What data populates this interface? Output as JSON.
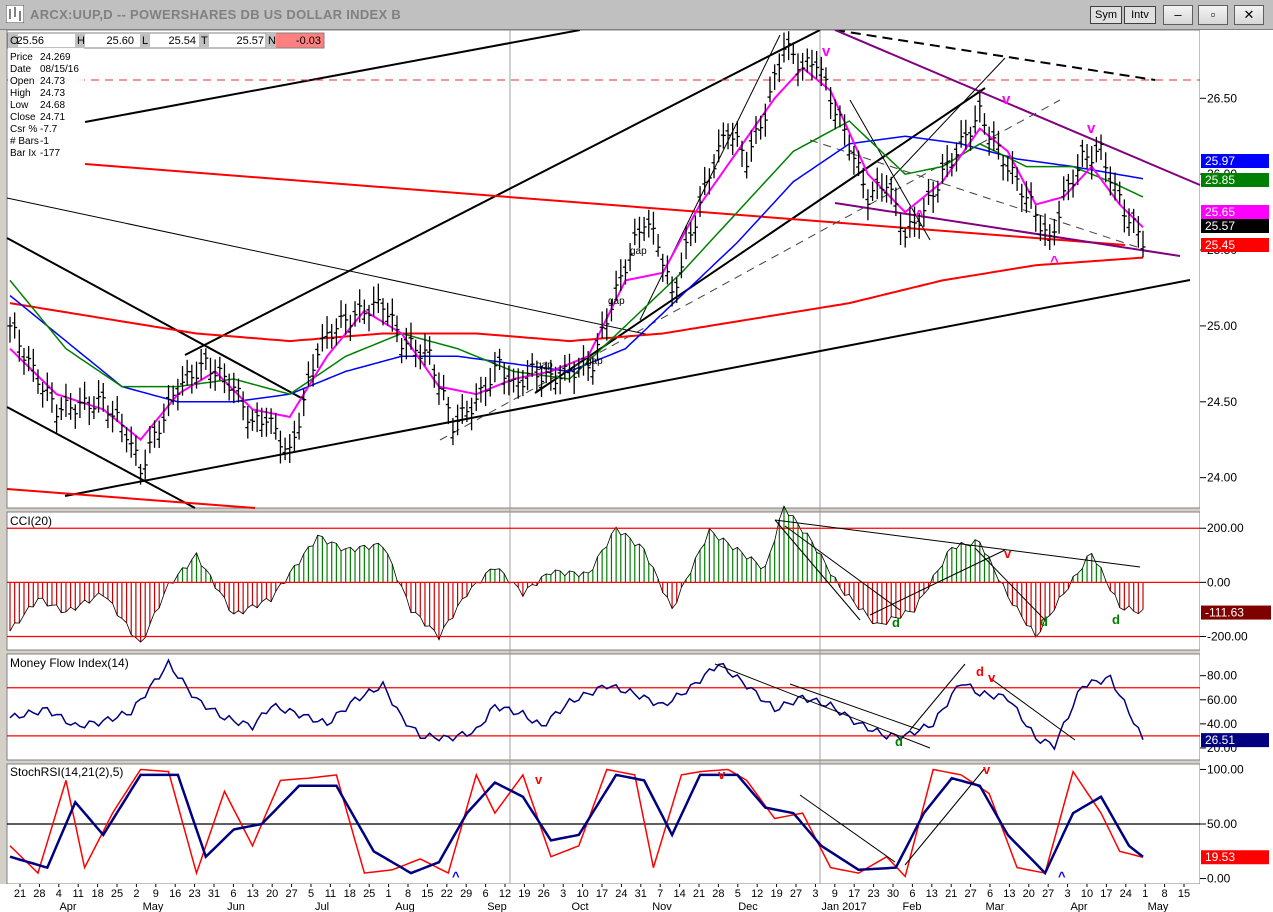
{
  "window": {
    "title": "ARCX:UUP,D -- POWERSHARES DB US DOLLAR INDEX B",
    "sym_label": "Sym",
    "intv_label": "Intv",
    "minimize_glyph": "–",
    "restore_glyph": "▫",
    "close_glyph": "✕"
  },
  "colors": {
    "bg": "#ffffff",
    "up_bar": "#000000",
    "ema_magenta": "#ff00ff",
    "ema_green": "#008000",
    "ema_blue": "#0000ff",
    "ema_red": "#ff0000",
    "channel_purple": "#800080",
    "cci_pos": "#008000",
    "cci_neg": "#cc0000",
    "mfi_line": "#000080",
    "stoch_red": "#ff0000",
    "stoch_blue": "#000080"
  },
  "ohlc_header": {
    "o_label": "O",
    "o_value": "25.56",
    "h_label": "H",
    "h_value": "25.60",
    "l_label": "L",
    "l_value": "25.54",
    "c_label": "T",
    "c_value": "25.57",
    "n_label": "N",
    "n_value": "-0.03"
  },
  "data_window": {
    "rows": [
      {
        "label": "Price",
        "value": "24.269"
      },
      {
        "label": "Date",
        "value": "08/15/16"
      },
      {
        "label": "Open",
        "value": "24.73"
      },
      {
        "label": "High",
        "value": "24.73"
      },
      {
        "label": "Low",
        "value": "24.68"
      },
      {
        "label": "Close",
        "value": "24.71"
      },
      {
        "label": "Csr %",
        "value": "-7.7"
      },
      {
        "label": "# Bars",
        "value": "-1"
      },
      {
        "label": "Bar Ix",
        "value": "-177"
      }
    ]
  },
  "chart_data": [
    {
      "type": "ohlc",
      "panel": "price",
      "title": "ARCX:UUP,D -- POWERSHARES DB US DOLLAR INDEX B",
      "ylim": [
        23.8,
        26.95
      ],
      "y_ticks": [
        "26.50",
        "26.00",
        "25.50",
        "25.00",
        "24.50",
        "24.00"
      ],
      "price_path": [
        [
          0,
          25.0
        ],
        [
          5,
          24.7
        ],
        [
          10,
          24.45
        ],
        [
          20,
          24.5
        ],
        [
          25,
          24.3
        ],
        [
          28,
          24.05
        ],
        [
          30,
          24.2
        ],
        [
          36,
          24.6
        ],
        [
          42,
          24.75
        ],
        [
          48,
          24.6
        ],
        [
          52,
          24.35
        ],
        [
          55,
          24.4
        ],
        [
          60,
          24.15
        ],
        [
          66,
          24.85
        ],
        [
          70,
          25.0
        ],
        [
          76,
          25.1
        ],
        [
          80,
          25.15
        ],
        [
          84,
          24.9
        ],
        [
          90,
          24.8
        ],
        [
          95,
          24.35
        ],
        [
          100,
          24.5
        ],
        [
          105,
          24.75
        ],
        [
          108,
          24.6
        ],
        [
          112,
          24.7
        ],
        [
          116,
          24.65
        ],
        [
          120,
          24.7
        ],
        [
          125,
          24.75
        ],
        [
          128,
          25.05
        ],
        [
          132,
          25.4
        ],
        [
          136,
          25.7
        ],
        [
          139,
          25.55
        ],
        [
          142,
          25.2
        ],
        [
          146,
          25.6
        ],
        [
          150,
          26.0
        ],
        [
          154,
          26.3
        ],
        [
          158,
          26.1
        ],
        [
          162,
          26.4
        ],
        [
          166,
          26.85
        ],
        [
          170,
          26.7
        ],
        [
          173,
          26.75
        ],
        [
          176,
          26.5
        ],
        [
          180,
          26.2
        ],
        [
          184,
          25.85
        ],
        [
          188,
          25.95
        ],
        [
          192,
          25.6
        ],
        [
          196,
          25.75
        ],
        [
          200,
          26.0
        ],
        [
          204,
          26.2
        ],
        [
          208,
          26.4
        ],
        [
          212,
          26.15
        ],
        [
          215,
          26.0
        ],
        [
          219,
          25.8
        ],
        [
          223,
          25.55
        ],
        [
          226,
          25.85
        ],
        [
          230,
          26.1
        ],
        [
          234,
          26.15
        ],
        [
          237,
          25.9
        ],
        [
          240,
          25.7
        ],
        [
          243,
          25.57
        ]
      ],
      "ema_magenta": [
        [
          0,
          24.85
        ],
        [
          10,
          24.55
        ],
        [
          20,
          24.45
        ],
        [
          28,
          24.25
        ],
        [
          36,
          24.55
        ],
        [
          44,
          24.7
        ],
        [
          52,
          24.45
        ],
        [
          60,
          24.4
        ],
        [
          68,
          24.8
        ],
        [
          76,
          25.1
        ],
        [
          84,
          24.95
        ],
        [
          92,
          24.6
        ],
        [
          100,
          24.55
        ],
        [
          108,
          24.65
        ],
        [
          116,
          24.7
        ],
        [
          124,
          24.8
        ],
        [
          132,
          25.3
        ],
        [
          140,
          25.35
        ],
        [
          148,
          25.8
        ],
        [
          156,
          26.15
        ],
        [
          164,
          26.5
        ],
        [
          170,
          26.7
        ],
        [
          176,
          26.55
        ],
        [
          184,
          26.0
        ],
        [
          192,
          25.75
        ],
        [
          200,
          25.95
        ],
        [
          208,
          26.3
        ],
        [
          214,
          26.15
        ],
        [
          220,
          25.8
        ],
        [
          226,
          25.85
        ],
        [
          232,
          26.05
        ],
        [
          238,
          25.8
        ],
        [
          243,
          25.65
        ]
      ],
      "ema_green": [
        [
          0,
          25.3
        ],
        [
          12,
          24.85
        ],
        [
          24,
          24.6
        ],
        [
          36,
          24.6
        ],
        [
          48,
          24.65
        ],
        [
          60,
          24.55
        ],
        [
          72,
          24.8
        ],
        [
          84,
          24.95
        ],
        [
          96,
          24.85
        ],
        [
          108,
          24.7
        ],
        [
          120,
          24.65
        ],
        [
          132,
          25.0
        ],
        [
          144,
          25.35
        ],
        [
          156,
          25.75
        ],
        [
          168,
          26.15
        ],
        [
          180,
          26.35
        ],
        [
          192,
          26.0
        ],
        [
          200,
          26.05
        ],
        [
          208,
          26.2
        ],
        [
          218,
          26.05
        ],
        [
          228,
          26.05
        ],
        [
          236,
          25.95
        ],
        [
          243,
          25.85
        ]
      ],
      "ema_blue": [
        [
          0,
          25.2
        ],
        [
          12,
          24.9
        ],
        [
          24,
          24.6
        ],
        [
          36,
          24.5
        ],
        [
          48,
          24.5
        ],
        [
          60,
          24.55
        ],
        [
          72,
          24.7
        ],
        [
          84,
          24.8
        ],
        [
          96,
          24.8
        ],
        [
          108,
          24.75
        ],
        [
          120,
          24.7
        ],
        [
          132,
          24.85
        ],
        [
          144,
          25.2
        ],
        [
          156,
          25.55
        ],
        [
          168,
          25.95
        ],
        [
          180,
          26.2
        ],
        [
          192,
          26.25
        ],
        [
          204,
          26.2
        ],
        [
          216,
          26.1
        ],
        [
          228,
          26.05
        ],
        [
          243,
          25.97
        ]
      ],
      "ema_red": [
        [
          0,
          25.15
        ],
        [
          20,
          25.05
        ],
        [
          40,
          24.95
        ],
        [
          60,
          24.9
        ],
        [
          80,
          24.95
        ],
        [
          100,
          24.95
        ],
        [
          120,
          24.9
        ],
        [
          140,
          24.95
        ],
        [
          160,
          25.05
        ],
        [
          180,
          25.15
        ],
        [
          200,
          25.3
        ],
        [
          220,
          25.4
        ],
        [
          243,
          25.45
        ]
      ],
      "price_labels": [
        "25.97",
        "25.85",
        "25.65",
        "25.57",
        "25.45"
      ],
      "annotations": [
        "gap",
        "gap",
        "gap",
        "gap",
        "v",
        "v",
        "v",
        "^",
        "^"
      ]
    },
    {
      "type": "bar",
      "panel": "CCI",
      "title": "CCI(20)",
      "ylim": [
        -250,
        260
      ],
      "y_ticks": [
        "200.00",
        "0.00",
        "-200.00"
      ],
      "last_value": "-111.63",
      "values_path": [
        [
          0,
          -180
        ],
        [
          6,
          -60
        ],
        [
          12,
          -110
        ],
        [
          20,
          -40
        ],
        [
          28,
          -230
        ],
        [
          34,
          -10
        ],
        [
          40,
          100
        ],
        [
          48,
          -120
        ],
        [
          56,
          -60
        ],
        [
          66,
          170
        ],
        [
          72,
          120
        ],
        [
          80,
          140
        ],
        [
          86,
          -100
        ],
        [
          92,
          -200
        ],
        [
          98,
          -40
        ],
        [
          104,
          60
        ],
        [
          110,
          -40
        ],
        [
          116,
          40
        ],
        [
          124,
          30
        ],
        [
          130,
          200
        ],
        [
          136,
          120
        ],
        [
          142,
          -100
        ],
        [
          150,
          190
        ],
        [
          156,
          120
        ],
        [
          162,
          50
        ],
        [
          166,
          280
        ],
        [
          172,
          150
        ],
        [
          178,
          -20
        ],
        [
          186,
          -160
        ],
        [
          194,
          -100
        ],
        [
          202,
          130
        ],
        [
          208,
          150
        ],
        [
          214,
          -50
        ],
        [
          220,
          -200
        ],
        [
          226,
          -40
        ],
        [
          232,
          110
        ],
        [
          238,
          -90
        ],
        [
          243,
          -112
        ]
      ],
      "annotations": [
        "d",
        "d",
        "d",
        "v"
      ]
    },
    {
      "type": "line",
      "panel": "MFI",
      "title": "Money Flow Index(14)",
      "ylim": [
        10,
        98
      ],
      "y_ticks": [
        "80.00",
        "60.00",
        "40.00",
        "20.00"
      ],
      "last_value": "26.51",
      "values_path": [
        [
          0,
          45
        ],
        [
          8,
          52
        ],
        [
          14,
          38
        ],
        [
          20,
          42
        ],
        [
          26,
          50
        ],
        [
          34,
          90
        ],
        [
          40,
          60
        ],
        [
          46,
          45
        ],
        [
          52,
          38
        ],
        [
          56,
          55
        ],
        [
          62,
          48
        ],
        [
          68,
          40
        ],
        [
          74,
          60
        ],
        [
          80,
          72
        ],
        [
          84,
          45
        ],
        [
          88,
          30
        ],
        [
          94,
          28
        ],
        [
          100,
          34
        ],
        [
          104,
          55
        ],
        [
          110,
          48
        ],
        [
          114,
          38
        ],
        [
          120,
          58
        ],
        [
          128,
          72
        ],
        [
          134,
          65
        ],
        [
          140,
          55
        ],
        [
          146,
          70
        ],
        [
          152,
          90
        ],
        [
          158,
          72
        ],
        [
          164,
          52
        ],
        [
          170,
          62
        ],
        [
          176,
          55
        ],
        [
          182,
          40
        ],
        [
          188,
          30
        ],
        [
          192,
          30
        ],
        [
          198,
          40
        ],
        [
          204,
          75
        ],
        [
          208,
          65
        ],
        [
          214,
          62
        ],
        [
          220,
          28
        ],
        [
          224,
          22
        ],
        [
          230,
          72
        ],
        [
          236,
          78
        ],
        [
          240,
          50
        ],
        [
          243,
          26.5
        ]
      ],
      "annotations": [
        "d",
        "d",
        "v"
      ]
    },
    {
      "type": "line",
      "panel": "StochRSI",
      "title": "StochRSI(14,21(2),5)",
      "ylim": [
        -5,
        105
      ],
      "y_ticks": [
        "100.00",
        "50.00",
        "0.00"
      ],
      "last_value": "19.53",
      "red_path": [
        [
          0,
          30
        ],
        [
          6,
          5
        ],
        [
          12,
          90
        ],
        [
          16,
          10
        ],
        [
          22,
          60
        ],
        [
          28,
          100
        ],
        [
          34,
          98
        ],
        [
          40,
          5
        ],
        [
          46,
          80
        ],
        [
          52,
          30
        ],
        [
          58,
          90
        ],
        [
          64,
          92
        ],
        [
          70,
          95
        ],
        [
          76,
          5
        ],
        [
          82,
          8
        ],
        [
          88,
          18
        ],
        [
          94,
          5
        ],
        [
          100,
          95
        ],
        [
          104,
          60
        ],
        [
          110,
          95
        ],
        [
          116,
          20
        ],
        [
          122,
          30
        ],
        [
          128,
          100
        ],
        [
          134,
          95
        ],
        [
          138,
          10
        ],
        [
          144,
          95
        ],
        [
          148,
          98
        ],
        [
          154,
          100
        ],
        [
          158,
          90
        ],
        [
          164,
          55
        ],
        [
          170,
          60
        ],
        [
          176,
          10
        ],
        [
          182,
          5
        ],
        [
          188,
          20
        ],
        [
          192,
          2
        ],
        [
          198,
          100
        ],
        [
          204,
          95
        ],
        [
          210,
          78
        ],
        [
          216,
          10
        ],
        [
          222,
          5
        ],
        [
          228,
          98
        ],
        [
          234,
          60
        ],
        [
          238,
          25
        ],
        [
          243,
          19.5
        ]
      ],
      "blue_path": [
        [
          0,
          20
        ],
        [
          8,
          10
        ],
        [
          14,
          70
        ],
        [
          20,
          40
        ],
        [
          28,
          95
        ],
        [
          36,
          95
        ],
        [
          42,
          20
        ],
        [
          48,
          45
        ],
        [
          54,
          50
        ],
        [
          62,
          85
        ],
        [
          70,
          85
        ],
        [
          78,
          25
        ],
        [
          86,
          5
        ],
        [
          92,
          15
        ],
        [
          98,
          60
        ],
        [
          104,
          88
        ],
        [
          110,
          75
        ],
        [
          116,
          35
        ],
        [
          122,
          40
        ],
        [
          130,
          95
        ],
        [
          136,
          90
        ],
        [
          142,
          40
        ],
        [
          148,
          95
        ],
        [
          156,
          95
        ],
        [
          162,
          65
        ],
        [
          168,
          60
        ],
        [
          174,
          30
        ],
        [
          182,
          8
        ],
        [
          190,
          10
        ],
        [
          196,
          60
        ],
        [
          202,
          92
        ],
        [
          208,
          85
        ],
        [
          214,
          40
        ],
        [
          222,
          5
        ],
        [
          228,
          60
        ],
        [
          234,
          75
        ],
        [
          240,
          30
        ],
        [
          243,
          20
        ]
      ],
      "annotations": [
        "v",
        "v",
        "v",
        "^",
        "^"
      ]
    }
  ],
  "x_axis": {
    "day_labels": [
      "21",
      "28",
      "4",
      "11",
      "18",
      "25",
      "2",
      "9",
      "16",
      "23",
      "31",
      "6",
      "13",
      "20",
      "27",
      "5",
      "11",
      "18",
      "25",
      "1",
      "8",
      "15",
      "22",
      "29",
      "6",
      "12",
      "19",
      "26",
      "3",
      "10",
      "17",
      "24",
      "31",
      "7",
      "14",
      "21",
      "28",
      "5",
      "12",
      "19",
      "27",
      "3",
      "9",
      "17",
      "23",
      "30",
      "6",
      "13",
      "21",
      "27",
      "6",
      "13",
      "20",
      "27",
      "3",
      "10",
      "17",
      "24",
      "1",
      "8",
      "15"
    ],
    "month_labels": [
      "Apr",
      "May",
      "Jun",
      "Jul",
      "Aug",
      "Sep",
      "Oct",
      "Nov",
      "Dec",
      "Jan 2017",
      "Feb",
      "Mar",
      "Apr",
      "May"
    ]
  }
}
